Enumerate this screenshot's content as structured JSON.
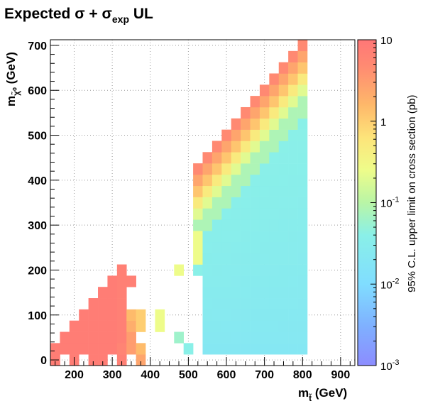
{
  "chart_data": {
    "type": "heatmap",
    "title": {
      "text": "Expected σ + σ",
      "sub": "exp",
      "suffix": " UL"
    },
    "xlabel": {
      "main": "m",
      "sub": "t̃",
      "unit": "(GeV)"
    },
    "ylabel": {
      "main": "m",
      "sub": "χ̃⁰",
      "unit": "(GeV)"
    },
    "zlabel": "95% C.L. upper limit on cross section (pb)",
    "x_range": [
      137.5,
      937.5
    ],
    "y_range": [
      -12.5,
      712.5
    ],
    "z_range": [
      0.001,
      10
    ],
    "z_scale": "log",
    "grid": true,
    "bin_size": 25,
    "x_ticks": [
      "200",
      "300",
      "400",
      "500",
      "600",
      "700",
      "800",
      "900"
    ],
    "y_ticks": [
      "0",
      "100",
      "200",
      "300",
      "400",
      "500",
      "600",
      "700"
    ],
    "z_ticks": [
      {
        "base": "10",
        "exp": ""
      },
      {
        "base": "1",
        "exp": ""
      },
      {
        "base": "10",
        "exp": "-1"
      },
      {
        "base": "10",
        "exp": "-2"
      },
      {
        "base": "10",
        "exp": "-3"
      }
    ],
    "regions": {
      "low_mass": [
        {
          "x_from": 150,
          "x_to": 175,
          "y_from": 25,
          "y_to": 50,
          "z": 8
        },
        {
          "x_from": 175,
          "x_to": 200,
          "y_from": 25,
          "y_to": 75,
          "z": 8
        },
        {
          "x_from": 200,
          "x_to": 225,
          "y_from": 25,
          "y_to": 100,
          "z": 8
        },
        {
          "x_from": 225,
          "x_to": 250,
          "y_from": 25,
          "y_to": 125,
          "z": 8
        },
        {
          "x_from": 250,
          "x_to": 275,
          "y_from": 25,
          "y_to": 150,
          "z": 8
        },
        {
          "x_from": 275,
          "x_to": 300,
          "y_from": 25,
          "y_to": 175,
          "z": 8
        },
        {
          "x_from": 300,
          "x_to": 325,
          "y_from": 25,
          "y_to": 200,
          "z": 8
        },
        {
          "x_from": 325,
          "x_to": 350,
          "y_from": 50,
          "y_to": 225,
          "z": 7
        }
      ],
      "scattered": [
        {
          "x": 150,
          "y": 0,
          "z": 8
        },
        {
          "x": 200,
          "y": 0,
          "z": 8
        },
        {
          "x": 250,
          "y": 0,
          "z": 8
        },
        {
          "x": 275,
          "y": 0,
          "z": 8
        },
        {
          "x": 325,
          "y": 0,
          "z": 7
        },
        {
          "x": 375,
          "y": 0,
          "z": 2.5
        },
        {
          "x": 150,
          "y": 0,
          "z": 8
        },
        {
          "x": 325,
          "y": 25,
          "z": 6
        },
        {
          "x": 350,
          "y": 25,
          "z": 3
        },
        {
          "x": 375,
          "y": 25,
          "z": 1.5
        },
        {
          "x": 350,
          "y": 50,
          "z": 3
        },
        {
          "x": 350,
          "y": 75,
          "z": 2
        },
        {
          "x": 375,
          "y": 75,
          "z": 1
        },
        {
          "x": 350,
          "y": 100,
          "z": 1.5
        },
        {
          "x": 375,
          "y": 100,
          "z": 1
        },
        {
          "x": 350,
          "y": 175,
          "z": 7
        },
        {
          "x": 425,
          "y": 100,
          "z": 0.25
        },
        {
          "x": 425,
          "y": 75,
          "z": 0.25
        },
        {
          "x": 475,
          "y": 200,
          "z": 0.25
        },
        {
          "x": 475,
          "y": 50,
          "z": 0.06
        },
        {
          "x": 500,
          "y": 25,
          "z": 0.04
        },
        {
          "x": 525,
          "y": 200,
          "z": 0.04
        },
        {
          "x": 550,
          "y": 25,
          "z": 0.03
        }
      ],
      "high_mass": {
        "x_from": 525,
        "x_to": 800,
        "note": "contour from ~0.02 pb (low ratio) to ~5 pb (diagonal edge)"
      }
    }
  }
}
